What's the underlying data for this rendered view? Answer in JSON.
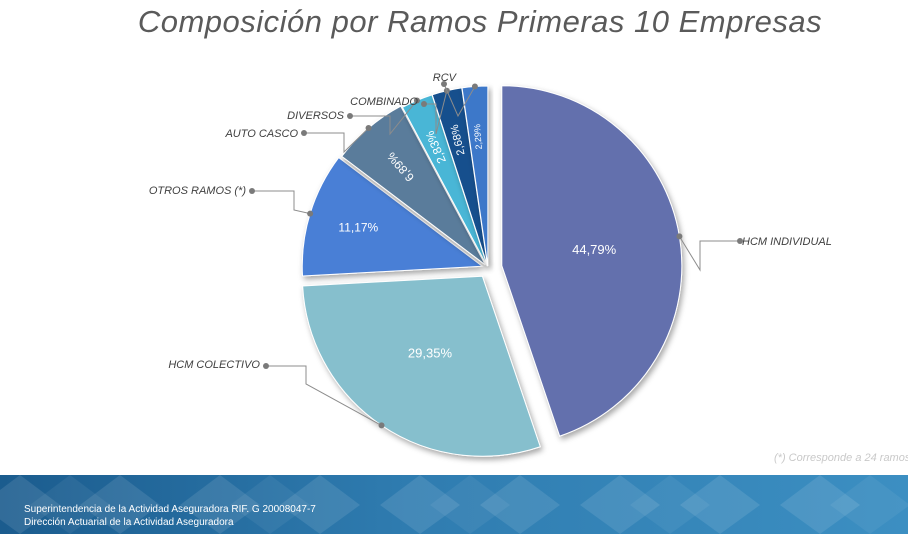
{
  "chart_data": {
    "type": "pie",
    "title": "Composición por Ramos Primeras 10 Empresas",
    "slices": [
      {
        "label": "HCM INDIVIDUAL",
        "value": 44.79,
        "display": "44,79%",
        "color": "#6370ad"
      },
      {
        "label": "HCM COLECTIVO",
        "value": 29.35,
        "display": "29,35%",
        "color": "#86bfcd"
      },
      {
        "label": "OTROS RAMOS (*)",
        "value": 11.17,
        "display": "11,17%",
        "color": "#4a7fd6"
      },
      {
        "label": "AUTO CASCO",
        "value": 6.89,
        "display": "6,89%",
        "color": "#5a7b9b"
      },
      {
        "label": "DIVERSOS",
        "value": 2.83,
        "display": "2,83%",
        "color": "#49b6d6"
      },
      {
        "label": "COMBINADO",
        "value": 2.68,
        "display": "2,68%",
        "color": "#174f8d"
      },
      {
        "label": "RCV",
        "value": 2.29,
        "display": "2,29%",
        "color": "#3e78c9"
      }
    ]
  },
  "footnote": "(*) Corresponde a 24 ramos",
  "footer": {
    "line1": "Superintendencia de la Actividad Aseguradora RIF. G 20008047-7",
    "line2": "Dirección Actuarial de la Actividad Aseguradora"
  }
}
